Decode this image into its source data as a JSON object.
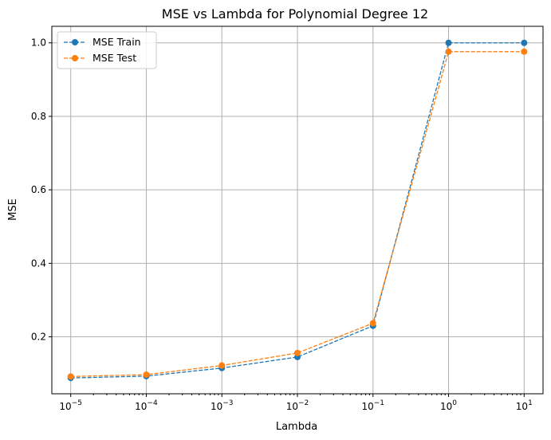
{
  "chart_data": {
    "type": "line",
    "title": "MSE vs Lambda for Polynomial Degree 12",
    "xlabel": "Lambda",
    "ylabel": "MSE",
    "x_scale": "log",
    "x": [
      1e-05,
      0.0001,
      0.001,
      0.01,
      0.1,
      1,
      10
    ],
    "x_tick_labels": [
      {
        "base": "10",
        "exp": "−5"
      },
      {
        "base": "10",
        "exp": "−4"
      },
      {
        "base": "10",
        "exp": "−3"
      },
      {
        "base": "10",
        "exp": "−2"
      },
      {
        "base": "10",
        "exp": "−1"
      },
      {
        "base": "10",
        "exp": "0"
      },
      {
        "base": "10",
        "exp": "1"
      }
    ],
    "y_ticks": [
      "0.2",
      "0.4",
      "0.6",
      "0.8",
      "1.0"
    ],
    "ylim": [
      0.045,
      1.045
    ],
    "grid": true,
    "legend_position": "top-left",
    "series": [
      {
        "name": "MSE Train",
        "color": "#1f77b4",
        "values": [
          0.088,
          0.093,
          0.115,
          0.145,
          0.23,
          1.0,
          1.0
        ]
      },
      {
        "name": "MSE Test",
        "color": "#ff7f0e",
        "values": [
          0.092,
          0.097,
          0.122,
          0.156,
          0.237,
          0.976,
          0.976
        ]
      }
    ]
  }
}
